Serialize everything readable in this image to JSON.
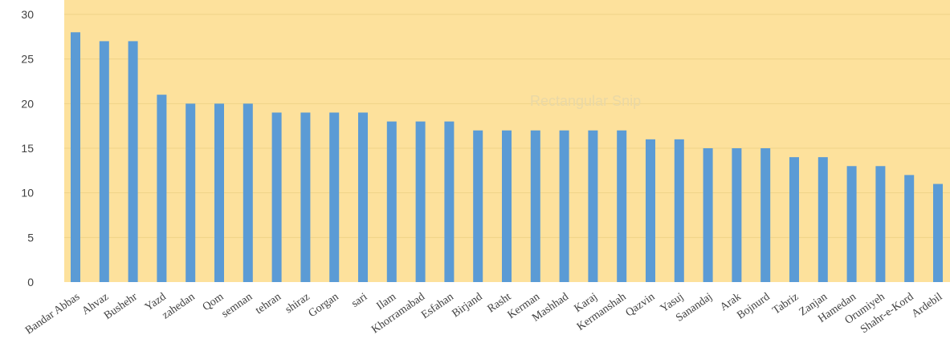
{
  "watermark": "Rectangular Snip",
  "chart_data": {
    "type": "bar",
    "title": "",
    "xlabel": "",
    "ylabel": "",
    "ylim": [
      0,
      30
    ],
    "yticks": [
      0,
      5,
      10,
      15,
      20,
      25,
      30
    ],
    "grid": true,
    "legend": "none",
    "colors": {
      "plot_background": "#fde19c",
      "bar": "#5b9bd5",
      "grid": "#efd387",
      "tick_text": "#404040"
    },
    "categories": [
      "Bandar Abbas",
      "Ahvaz",
      "Bushehr",
      "Yazd",
      "zahedan",
      "Qom",
      "semnan",
      "tehran",
      "shiraz",
      "Gorgan",
      "sari",
      "Ilam",
      "Khorramabad",
      "Esfahan",
      "Birjand",
      "Rasht",
      "Kerman",
      "Mashhad",
      "Karaj",
      "Kermanshah",
      "Qazvin",
      "Yasuj",
      "Sanandaj",
      "Arak",
      "Bojnurd",
      "Tabriz",
      "Zanjan",
      "Hamedan",
      "Orumiyeh",
      "Shahr-e-Kord",
      "Ardebil"
    ],
    "values": [
      28,
      27,
      27,
      21,
      20,
      20,
      20,
      19,
      19,
      19,
      19,
      18,
      18,
      18,
      17,
      17,
      17,
      17,
      17,
      17,
      16,
      16,
      15,
      15,
      15,
      14,
      14,
      13,
      13,
      12,
      11
    ]
  }
}
